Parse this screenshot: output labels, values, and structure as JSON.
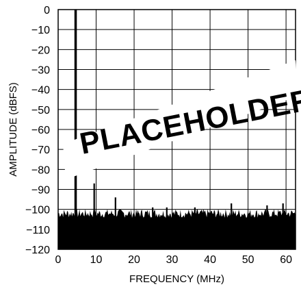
{
  "chart_data": {
    "type": "bar",
    "title": "",
    "xlabel": "FREQUENCY (MHz)",
    "ylabel": "AMPLITUDE (dBFS)",
    "xlim": [
      0,
      62.5
    ],
    "ylim": [
      -120,
      0
    ],
    "xticks": [
      0,
      10,
      20,
      30,
      40,
      50,
      60
    ],
    "yticks": [
      0,
      -10,
      -20,
      -30,
      -40,
      -50,
      -60,
      -70,
      -80,
      -90,
      -100,
      -110,
      -120
    ],
    "xtick_labels": [
      "0",
      "10",
      "20",
      "30",
      "40",
      "50",
      "60"
    ],
    "ytick_labels": [
      "0",
      "−10",
      "−20",
      "−30",
      "−40",
      "−50",
      "−60",
      "−70",
      "−80",
      "−90",
      "−100",
      "−110",
      "−120"
    ],
    "grid": true,
    "noise_floor": -102,
    "spurs": [
      {
        "x": 4.6,
        "value": 0
      },
      {
        "x": 9.5,
        "value": -87
      },
      {
        "x": 15.1,
        "value": -94
      },
      {
        "x": 24.9,
        "value": -99
      },
      {
        "x": 28.6,
        "value": -99
      },
      {
        "x": 36.0,
        "value": -99
      },
      {
        "x": 45.6,
        "value": -97
      },
      {
        "x": 55.0,
        "value": -98
      },
      {
        "x": 59.2,
        "value": -97
      }
    ],
    "stamp_text": "PLACEHOLDER"
  }
}
